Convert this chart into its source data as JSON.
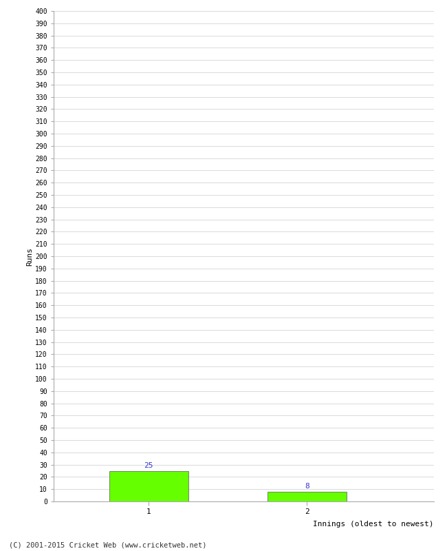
{
  "xlabel": "Innings (oldest to newest)",
  "ylabel": "Runs",
  "categories": [
    "1",
    "2"
  ],
  "values": [
    25,
    8
  ],
  "bar_color": "#66ff00",
  "bar_edge_color": "#555555",
  "label_color": "#3333cc",
  "ylim": [
    0,
    400
  ],
  "background_color": "#ffffff",
  "grid_color": "#cccccc",
  "footer": "(C) 2001-2015 Cricket Web (www.cricketweb.net)"
}
